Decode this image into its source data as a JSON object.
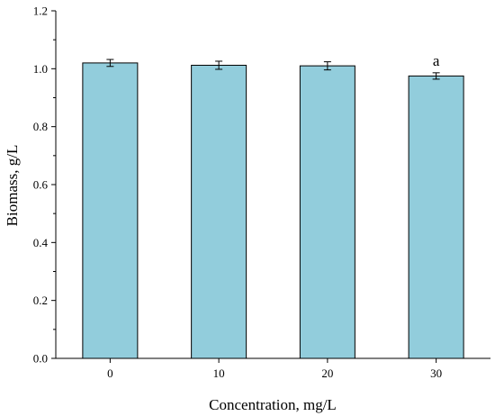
{
  "chart_data": {
    "type": "bar",
    "categories": [
      "0",
      "10",
      "20",
      "30"
    ],
    "values": [
      1.02,
      1.012,
      1.01,
      0.975
    ],
    "errors": [
      0.012,
      0.014,
      0.014,
      0.011
    ],
    "annotations": [
      "",
      "",
      "",
      "a"
    ],
    "xlabel": "Concentration, mg/L",
    "ylabel": "Biomass, g/L",
    "ylim": [
      0.0,
      1.2
    ],
    "yticks": [
      "0.0",
      "0.2",
      "0.4",
      "0.6",
      "0.8",
      "1.0",
      "1.2"
    ],
    "grid": false,
    "colors": {
      "bar_fill": "#92CDDC",
      "bar_stroke": "#000000",
      "axis": "#000000"
    }
  }
}
